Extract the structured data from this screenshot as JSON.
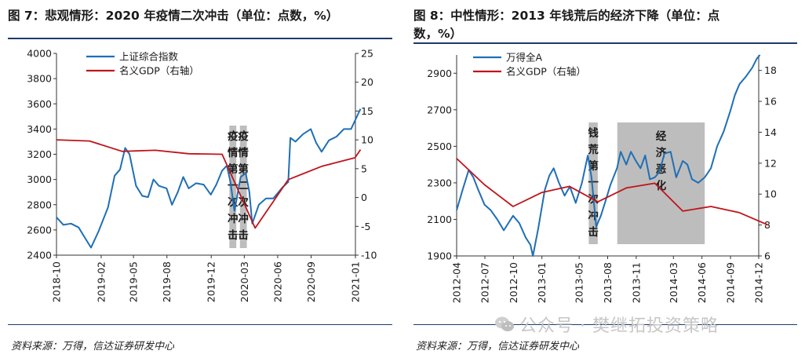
{
  "left_panel": {
    "title": "图 7：悲观情形：2020 年疫情二次冲击（单位：点数，%）",
    "source": "资料来源：万得，信达证券研发中心"
  },
  "right_panel": {
    "title_line1": "图 8：中性情形：2013 年钱荒后的经济下降（单位：点",
    "title_line2": "数，%）",
    "source": "资料来源：万得，信达证券研发中心"
  },
  "watermark": {
    "text": "公众号 · 樊继拓投资策略",
    "icon": "wechat-icon"
  },
  "chart_data": [
    {
      "type": "line",
      "x_ticks": [
        "2018-10",
        "2019-02",
        "2019-05",
        "2019-08",
        "2019-12",
        "2020-03",
        "2020-06",
        "2020-09",
        "2021-01"
      ],
      "y_left": {
        "lim": [
          2400,
          4000
        ],
        "ticks": [
          2400,
          2600,
          2800,
          3000,
          3200,
          3400,
          3600,
          3800,
          4000
        ]
      },
      "y_right": {
        "lim": [
          -10,
          25
        ],
        "ticks": [
          -10,
          -5,
          0,
          5,
          10,
          15,
          20,
          25
        ]
      },
      "legend": [
        "上证综合指数",
        "名义GDP（右轴）"
      ],
      "colors": {
        "index": "#1f6fb5",
        "gdp": "#c0141b",
        "shade": "#bdbdbd"
      },
      "annotations": [
        {
          "label": "疫情第一次冲击",
          "x_range": [
            "2020-01-20",
            "2020-02-08"
          ],
          "chars": [
            "疫",
            "情",
            "第",
            "一",
            "次",
            "冲",
            "击"
          ]
        },
        {
          "label": "疫情第二次冲击",
          "x_range": [
            "2020-02-18",
            "2020-03-08"
          ],
          "chars": [
            "疫",
            "情",
            "第",
            "二",
            "次",
            "冲",
            "击"
          ]
        }
      ],
      "series": [
        {
          "name": "上证综合指数",
          "axis": "left",
          "points": [
            [
              "2018-10-01",
              2700
            ],
            [
              "2018-10-20",
              2640
            ],
            [
              "2018-11-10",
              2650
            ],
            [
              "2018-12-01",
              2620
            ],
            [
              "2018-12-20",
              2530
            ],
            [
              "2019-01-04",
              2460
            ],
            [
              "2019-01-25",
              2590
            ],
            [
              "2019-02-20",
              2780
            ],
            [
              "2019-03-10",
              3030
            ],
            [
              "2019-03-25",
              3080
            ],
            [
              "2019-04-08",
              3250
            ],
            [
              "2019-04-20",
              3200
            ],
            [
              "2019-05-08",
              2950
            ],
            [
              "2019-05-25",
              2870
            ],
            [
              "2019-06-10",
              2860
            ],
            [
              "2019-06-25",
              3000
            ],
            [
              "2019-07-10",
              2950
            ],
            [
              "2019-07-31",
              2930
            ],
            [
              "2019-08-15",
              2800
            ],
            [
              "2019-08-31",
              2900
            ],
            [
              "2019-09-15",
              3020
            ],
            [
              "2019-09-30",
              2930
            ],
            [
              "2019-10-20",
              2970
            ],
            [
              "2019-11-10",
              2960
            ],
            [
              "2019-11-30",
              2880
            ],
            [
              "2019-12-15",
              2960
            ],
            [
              "2019-12-31",
              3070
            ],
            [
              "2020-01-13",
              3110
            ],
            [
              "2020-01-23",
              2980
            ],
            [
              "2020-02-03",
              2750
            ],
            [
              "2020-02-20",
              3020
            ],
            [
              "2020-03-05",
              3050
            ],
            [
              "2020-03-15",
              2900
            ],
            [
              "2020-03-23",
              2650
            ],
            [
              "2020-04-10",
              2800
            ],
            [
              "2020-04-30",
              2850
            ],
            [
              "2020-05-20",
              2850
            ],
            [
              "2020-06-15",
              2940
            ],
            [
              "2020-06-30",
              2980
            ],
            [
              "2020-07-06",
              3330
            ],
            [
              "2020-07-20",
              3300
            ],
            [
              "2020-08-10",
              3360
            ],
            [
              "2020-08-31",
              3400
            ],
            [
              "2020-09-15",
              3290
            ],
            [
              "2020-09-30",
              3220
            ],
            [
              "2020-10-20",
              3310
            ],
            [
              "2020-11-10",
              3340
            ],
            [
              "2020-11-30",
              3400
            ],
            [
              "2020-12-20",
              3400
            ],
            [
              "2021-01-10",
              3530
            ],
            [
              "2021-01-15",
              3560
            ]
          ]
        },
        {
          "name": "名义GDP（右轴）",
          "axis": "right",
          "points": [
            [
              "2018-10-01",
              10
            ],
            [
              "2018-12-31",
              9.8
            ],
            [
              "2019-03-31",
              8.0
            ],
            [
              "2019-06-30",
              8.2
            ],
            [
              "2019-09-30",
              7.6
            ],
            [
              "2019-12-31",
              7.5
            ],
            [
              "2020-03-31",
              -5.3
            ],
            [
              "2020-06-30",
              3.1
            ],
            [
              "2020-09-30",
              5.4
            ],
            [
              "2020-12-31",
              6.9
            ],
            [
              "2021-01-15",
              8.3
            ]
          ]
        }
      ]
    },
    {
      "type": "line",
      "x_ticks": [
        "2012-04",
        "2012-07",
        "2012-10",
        "2013-01",
        "2013-05",
        "2013-08",
        "2013-11",
        "2014-03",
        "2014-06",
        "2014-09",
        "2014-12"
      ],
      "y_left": {
        "lim": [
          1900,
          3000
        ],
        "ticks": [
          1900,
          2100,
          2300,
          2500,
          2700,
          2900
        ]
      },
      "y_right": {
        "lim": [
          6,
          19
        ],
        "ticks": [
          6,
          8,
          10,
          12,
          14,
          16,
          18
        ]
      },
      "legend": [
        "万得全A",
        "名义GDP（右轴）"
      ],
      "colors": {
        "index": "#1f6fb5",
        "gdp": "#c0141b",
        "shade": "#bdbdbd"
      },
      "annotations": [
        {
          "label": "钱荒第一次冲击",
          "x_range": [
            "2013-06-01",
            "2013-06-30"
          ],
          "chars": [
            "钱",
            "荒",
            "第",
            "一",
            "次",
            "冲",
            "击"
          ]
        },
        {
          "label": "经济恶化",
          "x_range": [
            "2013-09-01",
            "2014-06-10"
          ],
          "chars": [
            "经",
            "济",
            "恶",
            "化"
          ]
        }
      ],
      "series": [
        {
          "name": "万得全A",
          "axis": "left",
          "points": [
            [
              "2012-04-01",
              2150
            ],
            [
              "2012-04-20",
              2260
            ],
            [
              "2012-05-10",
              2370
            ],
            [
              "2012-05-25",
              2330
            ],
            [
              "2012-06-10",
              2260
            ],
            [
              "2012-06-30",
              2180
            ],
            [
              "2012-07-20",
              2150
            ],
            [
              "2012-08-10",
              2100
            ],
            [
              "2012-08-31",
              2040
            ],
            [
              "2012-09-15",
              2080
            ],
            [
              "2012-09-30",
              2120
            ],
            [
              "2012-10-20",
              2080
            ],
            [
              "2012-11-10",
              2000
            ],
            [
              "2012-11-25",
              1960
            ],
            [
              "2012-12-03",
              1900
            ],
            [
              "2012-12-20",
              2050
            ],
            [
              "2013-01-10",
              2260
            ],
            [
              "2013-01-25",
              2340
            ],
            [
              "2013-02-08",
              2380
            ],
            [
              "2013-02-25",
              2300
            ],
            [
              "2013-03-15",
              2230
            ],
            [
              "2013-04-01",
              2280
            ],
            [
              "2013-04-20",
              2190
            ],
            [
              "2013-05-10",
              2300
            ],
            [
              "2013-05-29",
              2450
            ],
            [
              "2013-06-10",
              2330
            ],
            [
              "2013-06-25",
              2060
            ],
            [
              "2013-07-10",
              2120
            ],
            [
              "2013-07-25",
              2200
            ],
            [
              "2013-08-10",
              2290
            ],
            [
              "2013-08-31",
              2380
            ],
            [
              "2013-09-12",
              2470
            ],
            [
              "2013-09-30",
              2400
            ],
            [
              "2013-10-15",
              2470
            ],
            [
              "2013-10-31",
              2420
            ],
            [
              "2013-11-15",
              2380
            ],
            [
              "2013-11-30",
              2450
            ],
            [
              "2013-12-15",
              2320
            ],
            [
              "2013-12-31",
              2330
            ],
            [
              "2014-01-15",
              2360
            ],
            [
              "2014-01-31",
              2460
            ],
            [
              "2014-02-20",
              2470
            ],
            [
              "2014-03-10",
              2330
            ],
            [
              "2014-03-31",
              2420
            ],
            [
              "2014-04-15",
              2400
            ],
            [
              "2014-04-30",
              2320
            ],
            [
              "2014-05-20",
              2300
            ],
            [
              "2014-06-10",
              2330
            ],
            [
              "2014-06-30",
              2380
            ],
            [
              "2014-07-20",
              2500
            ],
            [
              "2014-08-10",
              2580
            ],
            [
              "2014-08-31",
              2690
            ],
            [
              "2014-09-15",
              2780
            ],
            [
              "2014-09-30",
              2840
            ],
            [
              "2014-10-20",
              2880
            ],
            [
              "2014-11-10",
              2930
            ],
            [
              "2014-11-25",
              2980
            ],
            [
              "2014-12-05",
              3000
            ]
          ]
        },
        {
          "name": "名义GDP（右轴）",
          "axis": "right",
          "points": [
            [
              "2012-04-01",
              12.3
            ],
            [
              "2012-06-30",
              10.6
            ],
            [
              "2012-09-30",
              9.2
            ],
            [
              "2012-12-31",
              10.1
            ],
            [
              "2013-03-31",
              10.5
            ],
            [
              "2013-06-30",
              9.5
            ],
            [
              "2013-09-30",
              10.4
            ],
            [
              "2013-12-31",
              10.7
            ],
            [
              "2014-03-31",
              8.9
            ],
            [
              "2014-06-30",
              9.2
            ],
            [
              "2014-09-30",
              8.8
            ],
            [
              "2014-12-31",
              8.0
            ]
          ]
        }
      ]
    }
  ]
}
